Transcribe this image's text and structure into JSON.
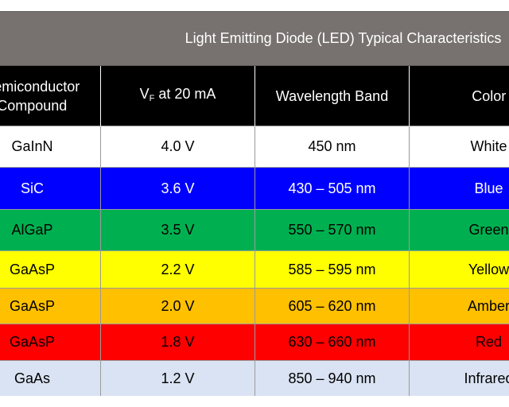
{
  "title": "Light Emitting Diode (LED) Typical Characteristics",
  "columns": {
    "compound_line1": "Semiconductor",
    "compound_line2": "Compound",
    "vf_main": "V",
    "vf_sub": "F",
    "vf_rest": " at 20 mA",
    "wavelength": "Wavelength Band",
    "color": "Color"
  },
  "rows": [
    {
      "compound": "GaInN",
      "vf": "4.0 V",
      "wavelength": "450 nm",
      "color": "White",
      "bg": "#ffffff",
      "fg": "#000000"
    },
    {
      "compound": "SiC",
      "vf": "3.6 V",
      "wavelength": "430 – 505 nm",
      "color": "Blue",
      "bg": "#0000ff",
      "fg": "#ffffff"
    },
    {
      "compound": "AlGaP",
      "vf": "3.5 V",
      "wavelength": "550 – 570 nm",
      "color": "Green",
      "bg": "#00b050",
      "fg": "#000000"
    },
    {
      "compound": "GaAsP",
      "vf": "2.2 V",
      "wavelength": "585 – 595 nm",
      "color": "Yellow",
      "bg": "#ffff00",
      "fg": "#000000"
    },
    {
      "compound": "GaAsP",
      "vf": "2.0 V",
      "wavelength": "605 – 620 nm",
      "color": "Amber",
      "bg": "#ffc000",
      "fg": "#000000"
    },
    {
      "compound": "GaAsP",
      "vf": "1.8 V",
      "wavelength": "630 – 660 nm",
      "color": "Red",
      "bg": "#ff0000",
      "fg": "#000000"
    },
    {
      "compound": "GaAs",
      "vf": "1.2 V",
      "wavelength": "850 – 940 nm",
      "color": "Infrared",
      "bg": "#dae3f3",
      "fg": "#000000"
    }
  ]
}
